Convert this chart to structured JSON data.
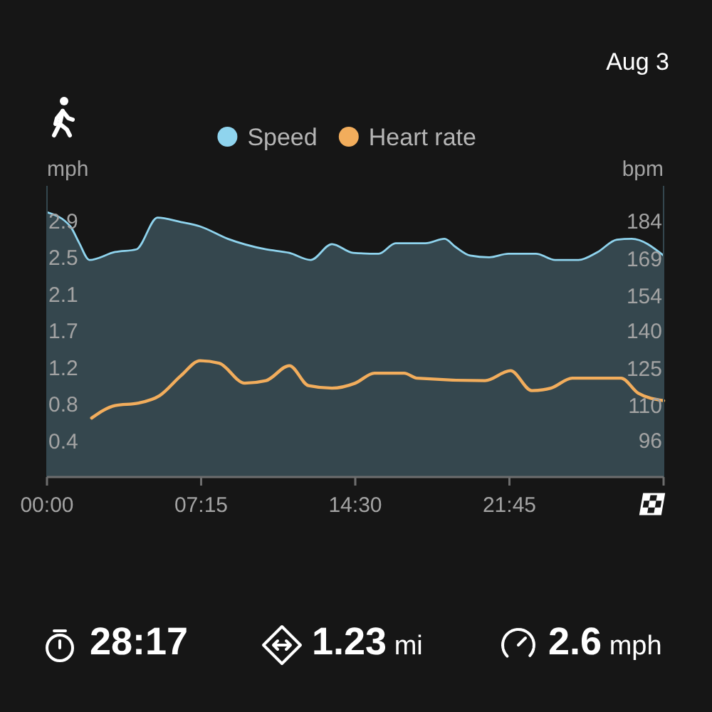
{
  "chart_data": {
    "type": "area",
    "annotations": [
      "Aug 3",
      "28:17",
      "1.23 mi",
      "2.6 mph"
    ],
    "ylabel": "mph",
    "y2label": "bpm",
    "xlim": [
      0,
      29
    ],
    "xticks": [
      {
        "value": 0,
        "label": "00:00"
      },
      {
        "value": 7.25,
        "label": "07:15"
      },
      {
        "value": 14.5,
        "label": "14:30"
      },
      {
        "value": 21.75,
        "label": "21:45"
      },
      {
        "value": 29,
        "label": null
      }
    ],
    "ylim": [
      0,
      3.3
    ],
    "yticks": [
      {
        "value": 0.41,
        "label": "0.4"
      },
      {
        "value": 0.83,
        "label": "0.8"
      },
      {
        "value": 1.24,
        "label": "1.2"
      },
      {
        "value": 1.66,
        "label": "1.7"
      },
      {
        "value": 2.07,
        "label": "2.1"
      },
      {
        "value": 2.49,
        "label": "2.5"
      },
      2.9
    ],
    "y2lim": [
      81.3,
      198.2
    ],
    "y2ticks": [
      96,
      110,
      125,
      140,
      154,
      169,
      184
    ],
    "legend": "top",
    "series": [
      {
        "name": "Speed",
        "color": "#8fd4ee",
        "x": [
          0,
          1.1,
          1.5,
          2,
          3.2,
          4.2,
          5.2,
          6.3,
          7.2,
          8.5,
          10.3,
          11.4,
          12.4,
          13.4,
          14.4,
          15.6,
          16.4,
          17.8,
          18.7,
          19.2,
          19.9,
          20.8,
          21.7,
          23,
          23.9,
          25,
          25.9,
          26.8,
          27.5,
          29
        ],
        "values": [
          3.0,
          2.84,
          2.66,
          2.46,
          2.55,
          2.58,
          2.94,
          2.89,
          2.84,
          2.7,
          2.58,
          2.54,
          2.46,
          2.64,
          2.54,
          2.53,
          2.65,
          2.65,
          2.7,
          2.61,
          2.51,
          2.49,
          2.53,
          2.53,
          2.46,
          2.46,
          2.55,
          2.69,
          2.7,
          2.51
        ]
      },
      {
        "name": "Heart rate",
        "type": "line",
        "axis": "y2",
        "color": "#f2ad5c",
        "x": [
          2.1,
          3.2,
          4.3,
          5.3,
          6.3,
          7.2,
          8.1,
          9.3,
          10.3,
          11.4,
          12.3,
          13.4,
          14.5,
          15.4,
          16.8,
          17.4,
          20.6,
          21.8,
          22.8,
          23.7,
          24.7,
          27,
          27.8,
          29
        ],
        "values": [
          105,
          110,
          111,
          114,
          122,
          128,
          127,
          119,
          120,
          126,
          118,
          117,
          119,
          123,
          123,
          121,
          120,
          124,
          116,
          117,
          121,
          121,
          115,
          112
        ]
      }
    ]
  }
}
